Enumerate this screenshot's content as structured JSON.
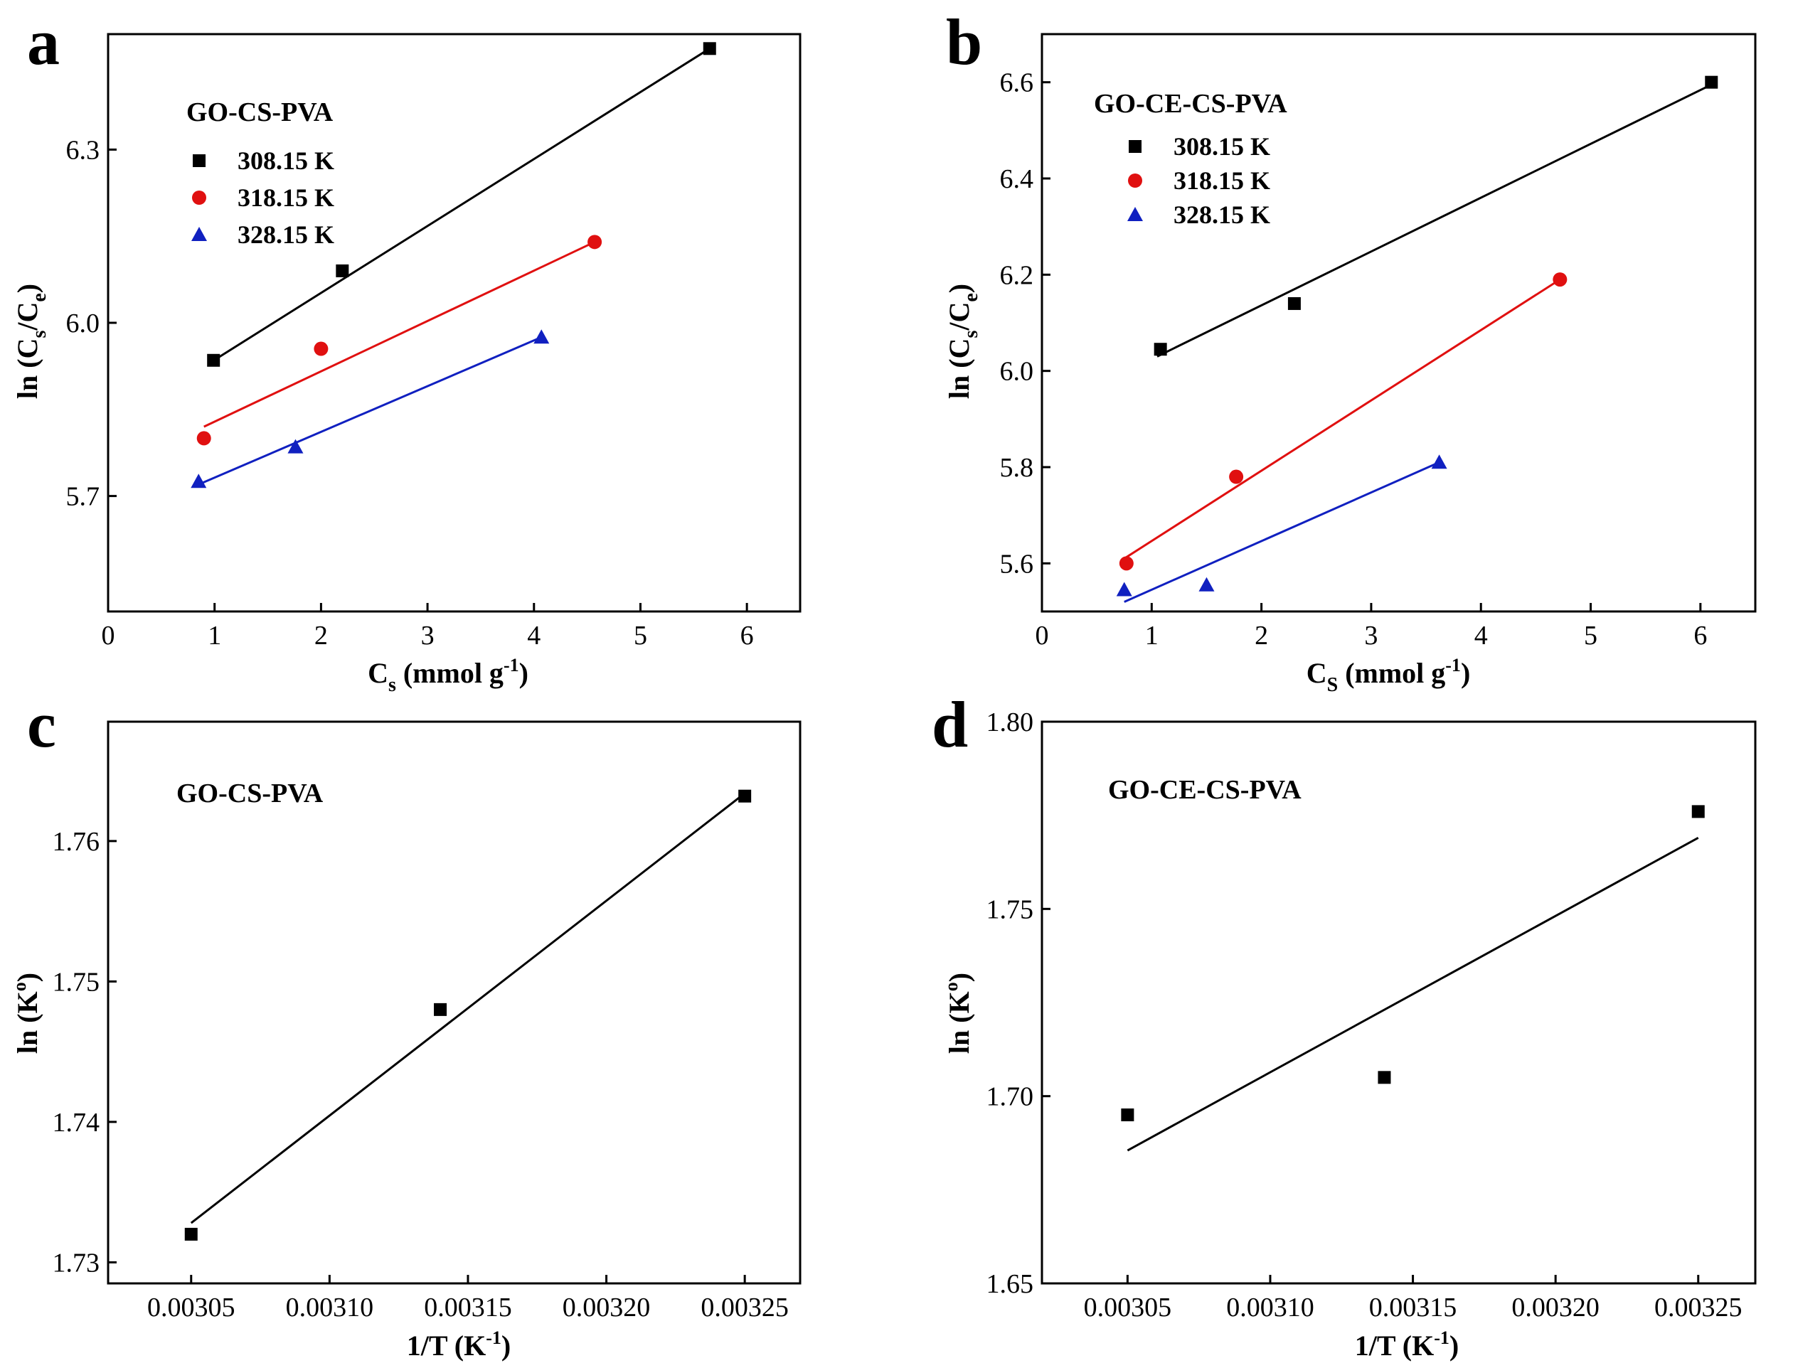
{
  "chart_data": [
    {
      "panel": "a",
      "type": "scatter",
      "annotation": "GO-CS-PVA",
      "xlabel": "C_s (mmol g^-1)",
      "ylabel": "ln (C_s/C_e)",
      "xlim": [
        0,
        6.5
      ],
      "ylim": [
        5.5,
        6.5
      ],
      "xticks": [
        0,
        1,
        2,
        3,
        4,
        5,
        6
      ],
      "yticks": [
        5.7,
        6.0,
        6.3
      ],
      "ytick_decimals": 1,
      "legend_position": "top-left",
      "series": [
        {
          "name": "308.15 K",
          "marker": "square",
          "color": "#000000",
          "x": [
            0.99,
            2.2,
            5.65
          ],
          "y": [
            5.935,
            6.09,
            6.475
          ],
          "fit": [
            [
              0.95,
              5.93
            ],
            [
              5.65,
              6.475
            ]
          ]
        },
        {
          "name": "318.15 K",
          "marker": "circle",
          "color": "#e01010",
          "x": [
            0.9,
            2.0,
            4.57
          ],
          "y": [
            5.8,
            5.955,
            6.14
          ],
          "fit": [
            [
              0.9,
              5.82
            ],
            [
              4.57,
              6.14
            ]
          ]
        },
        {
          "name": "328.15 K",
          "marker": "triangle",
          "color": "#1020c0",
          "x": [
            0.85,
            1.76,
            4.07
          ],
          "y": [
            5.725,
            5.785,
            5.975
          ],
          "fit": [
            [
              0.85,
              5.72
            ],
            [
              4.07,
              5.975
            ]
          ]
        }
      ]
    },
    {
      "panel": "b",
      "type": "scatter",
      "annotation": "GO-CE-CS-PVA",
      "xlabel": "C_s (mmol g^-1)",
      "ylabel": "ln (C_s/C_e)",
      "xlim": [
        0,
        6.5
      ],
      "ylim": [
        5.5,
        6.7
      ],
      "xticks": [
        0,
        1,
        2,
        3,
        4,
        5,
        6
      ],
      "yticks": [
        5.6,
        5.8,
        6.0,
        6.2,
        6.4,
        6.6
      ],
      "ytick_decimals": 1,
      "legend_position": "top-left",
      "series": [
        {
          "name": "308.15 K",
          "marker": "square",
          "color": "#000000",
          "x": [
            1.08,
            2.3,
            6.1
          ],
          "y": [
            6.045,
            6.14,
            6.6
          ],
          "fit": [
            [
              1.05,
              6.03
            ],
            [
              6.1,
              6.595
            ]
          ]
        },
        {
          "name": "318.15 K",
          "marker": "circle",
          "color": "#e01010",
          "x": [
            0.77,
            1.77,
            4.72
          ],
          "y": [
            5.6,
            5.78,
            6.19
          ],
          "fit": [
            [
              0.75,
              5.61
            ],
            [
              4.72,
              6.19
            ]
          ]
        },
        {
          "name": "328.15 K",
          "marker": "triangle",
          "color": "#1020c0",
          "x": [
            0.75,
            1.5,
            3.62
          ],
          "y": [
            5.545,
            5.555,
            5.81
          ],
          "fit": [
            [
              0.75,
              5.52
            ],
            [
              3.62,
              5.81
            ]
          ]
        }
      ]
    },
    {
      "panel": "c",
      "type": "scatter",
      "annotation": "GO-CS-PVA",
      "xlabel": "1/T (K^-1)",
      "ylabel": "ln (K^o)",
      "xlim": [
        0.00302,
        0.00327
      ],
      "ylim": [
        1.7285,
        1.7685
      ],
      "xticks": [
        0.00305,
        0.0031,
        0.00315,
        0.0032,
        0.00325
      ],
      "xtick_decimals": 5,
      "yticks": [
        1.73,
        1.74,
        1.75,
        1.76
      ],
      "ytick_decimals": 2,
      "series": [
        {
          "name": "",
          "marker": "square",
          "color": "#000000",
          "x": [
            0.00305,
            0.00314,
            0.00325
          ],
          "y": [
            1.732,
            1.748,
            1.7632
          ],
          "fit": [
            [
              0.00305,
              1.7328
            ],
            [
              0.00325,
              1.7634
            ]
          ]
        }
      ]
    },
    {
      "panel": "d",
      "type": "scatter",
      "annotation": "GO-CE-CS-PVA",
      "xlabel": "1/T (K^-1)",
      "ylabel": "ln (K^o)",
      "xlim": [
        0.00302,
        0.00327
      ],
      "ylim": [
        1.65,
        1.8
      ],
      "xticks": [
        0.00305,
        0.0031,
        0.00315,
        0.0032,
        0.00325
      ],
      "xtick_decimals": 5,
      "yticks": [
        1.65,
        1.7,
        1.75,
        1.8
      ],
      "ytick_decimals": 2,
      "series": [
        {
          "name": "",
          "marker": "square",
          "color": "#000000",
          "x": [
            0.00305,
            0.00314,
            0.00325
          ],
          "y": [
            1.695,
            1.705,
            1.776
          ],
          "fit": [
            [
              0.00305,
              1.6855
            ],
            [
              0.00325,
              1.769
            ]
          ]
        }
      ]
    }
  ]
}
